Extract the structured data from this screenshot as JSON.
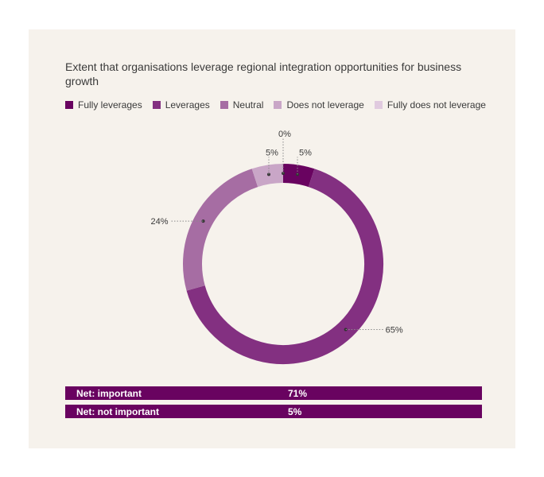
{
  "chart_data": {
    "type": "pie",
    "title": "Extent that organisations leverage regional integration opportunities for business growth",
    "categories": [
      "Fully leverages",
      "Leverages",
      "Neutral",
      "Does not leverage",
      "Fully does not leverage"
    ],
    "values": [
      5,
      65,
      24,
      5,
      0
    ],
    "value_labels": [
      "5%",
      "65%",
      "24%",
      "5%",
      "0%"
    ],
    "colors": [
      "#690360",
      "#833081",
      "#a66da3",
      "#c9a6c7",
      "#e0cadf"
    ],
    "legend_position": "top",
    "donut": true
  },
  "net": [
    {
      "label": "Net: important",
      "value": "71%"
    },
    {
      "label": "Net: not important",
      "value": "5%"
    }
  ]
}
